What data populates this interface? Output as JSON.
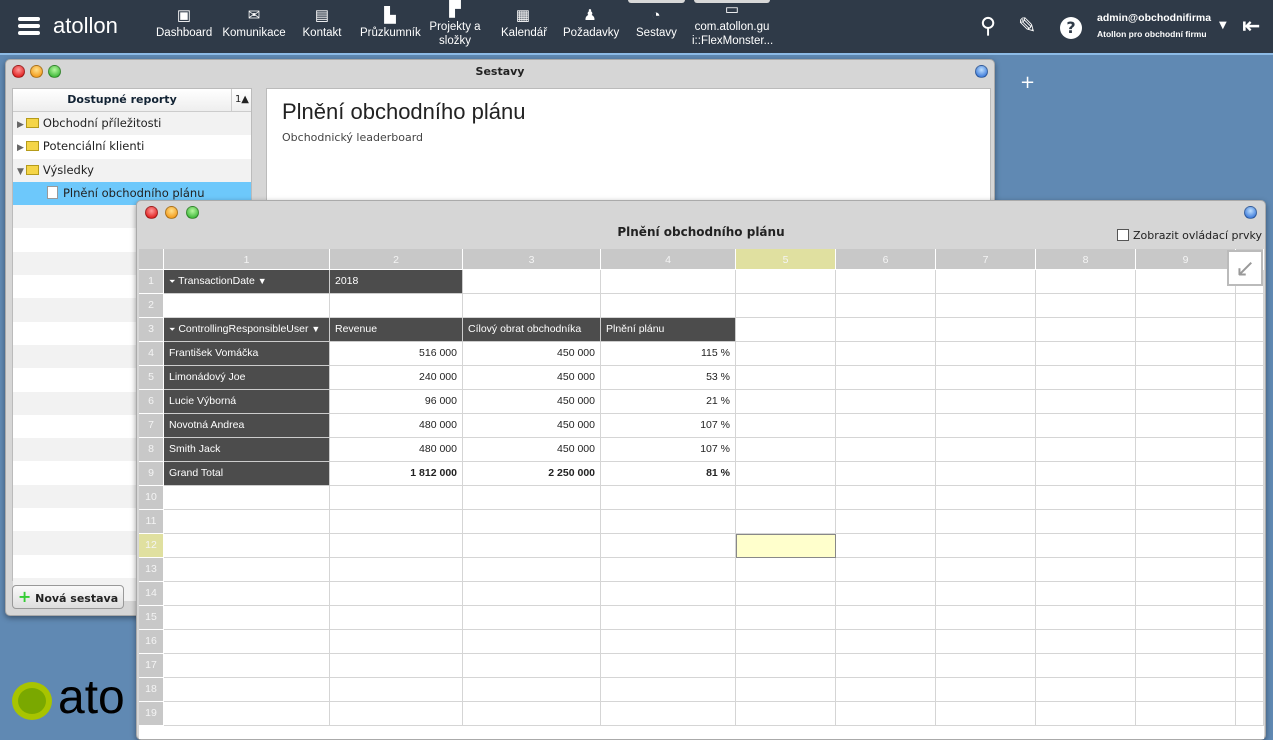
{
  "topbar": {
    "logo": "atollon",
    "nav": [
      {
        "label": "Dashboard",
        "icon": "dashboard-icon"
      },
      {
        "label": "Komunikace",
        "icon": "envelope-icon"
      },
      {
        "label": "Kontakt",
        "icon": "contact-book-icon"
      },
      {
        "label": "Průzkumník",
        "icon": "explorer-icon"
      },
      {
        "label": "Projekty a složky",
        "icon": "project-folder-icon"
      },
      {
        "label": "Kalendář",
        "icon": "calendar-icon"
      },
      {
        "label": "Požadavky",
        "icon": "requests-icon"
      },
      {
        "label": "Sestavy",
        "icon": "pie-chart-icon"
      },
      {
        "label": "com.atollon.gu i::FlexMonster...",
        "icon": "window-icon"
      }
    ],
    "user": {
      "email": "admin@obchodnifirma",
      "company": "Atollon pro obchodní firmu"
    }
  },
  "desktop": {
    "add_label": "+",
    "logo": "ato"
  },
  "back_window": {
    "title": "Sestavy",
    "tree_header": "Dostupné reporty",
    "sort_label": "1▲",
    "tree": [
      {
        "label": "Obchodní příležitosti",
        "type": "folder",
        "state": "collapsed"
      },
      {
        "label": "Potenciální klienti",
        "type": "folder",
        "state": "collapsed"
      },
      {
        "label": "Výsledky",
        "type": "folder",
        "state": "expanded"
      },
      {
        "label": "Plnění obchodního plánu",
        "type": "report",
        "selected": true
      }
    ],
    "report_title": "Plnění obchodního plánu",
    "report_subtitle": "Obchodnický leaderboard",
    "new_button": "Nová sestava"
  },
  "front_window": {
    "title": "Plnění obchodního plánu",
    "show_controls": "Zobrazit ovládací prvky",
    "show_controls_checked": false,
    "columns": [
      "1",
      "2",
      "3",
      "4",
      "5",
      "6",
      "7",
      "8",
      "9",
      ""
    ],
    "selected_cell": {
      "row": 12,
      "col": 5
    },
    "rows": [
      [
        "TransactionDate",
        "2018"
      ],
      [],
      [
        "ControllingResponsibleUser",
        "Revenue",
        "Cílový obrat obchodníka",
        "Plnění plánu"
      ],
      [
        "František Vomáčka",
        "516 000",
        "450 000",
        "115 %"
      ],
      [
        "Limonádový Joe",
        "240 000",
        "450 000",
        "53 %"
      ],
      [
        "Lucie Výborná",
        "96 000",
        "450 000",
        "21 %"
      ],
      [
        "Novotná  Andrea",
        "480 000",
        "450 000",
        "107 %"
      ],
      [
        "Smith  Jack",
        "480 000",
        "450 000",
        "107 %"
      ],
      [
        "Grand Total",
        "1 812 000",
        "2 250 000",
        "81 %"
      ],
      [],
      [],
      [],
      [],
      [],
      [],
      [],
      [],
      [],
      []
    ]
  }
}
